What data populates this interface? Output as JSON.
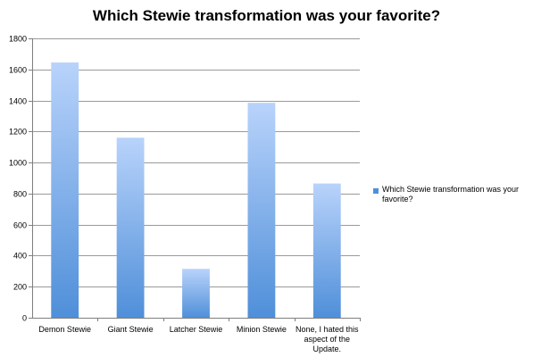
{
  "chart_data": {
    "type": "bar",
    "title": "Which Stewie transformation was your favorite?",
    "categories": [
      [
        "Demon Stewie"
      ],
      [
        "Giant Stewie"
      ],
      [
        "Latcher Stewie"
      ],
      [
        "Minion Stewie"
      ],
      [
        "None, I hated this",
        "aspect of the",
        "Update."
      ]
    ],
    "series": [
      {
        "name": "Which Stewie transformation was your favorite?",
        "values": [
          1645,
          1160,
          315,
          1385,
          865
        ]
      }
    ],
    "ylim": [
      0,
      1800
    ],
    "yticks": [
      "0",
      "200",
      "400",
      "600",
      "800",
      "1000",
      "1200",
      "1400",
      "1600",
      "1800"
    ],
    "grid": true,
    "legend_position": "right",
    "colors": {
      "bar_top": "#b9d3fb",
      "bar_bottom": "#4f8fd9",
      "grid": "#9a9a9a",
      "axis": "#7f7f7f"
    }
  }
}
